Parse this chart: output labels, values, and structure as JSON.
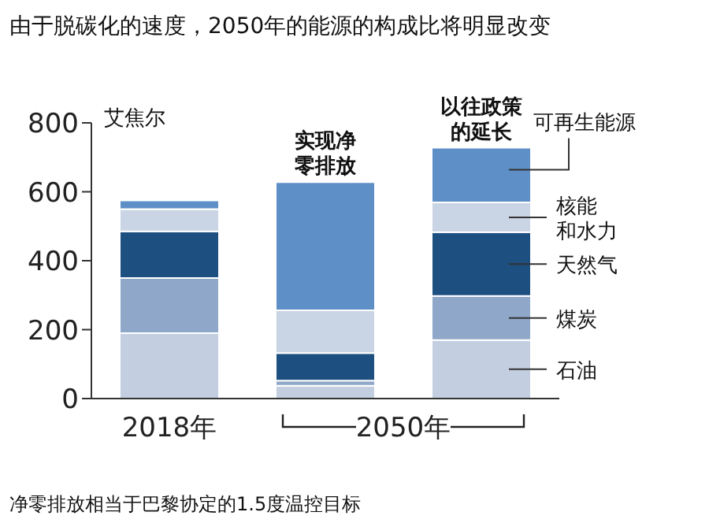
{
  "chart_data": {
    "type": "bar",
    "stacked": true,
    "title": "由于脱碳化的速度，2050年的能源的构成比将明显改变",
    "ylabel": "艾焦尔",
    "categories": [
      "2018年",
      "实现净零排放",
      "以往政策的延长"
    ],
    "series": [
      {
        "name": "石油",
        "color": "#c3cfe1",
        "values": [
          190,
          37,
          170
        ]
      },
      {
        "name": "煤炭",
        "color": "#8fa7c9",
        "values": [
          160,
          15,
          128
        ]
      },
      {
        "name": "天然气",
        "color": "#1d4f80",
        "values": [
          135,
          80,
          185
        ]
      },
      {
        "name": "核能和水力",
        "color": "#c9d4e4",
        "values": [
          65,
          124,
          86
        ]
      },
      {
        "name": "可再生能源",
        "color": "#5e8fc6",
        "values": [
          25,
          372,
          159
        ]
      }
    ],
    "ylim": [
      0,
      800
    ],
    "yticks": [
      0,
      200,
      400,
      600,
      800
    ],
    "annotations": [
      "2050年",
      "净零排放相当于巴黎协定的1.5度温控目标"
    ]
  }
}
